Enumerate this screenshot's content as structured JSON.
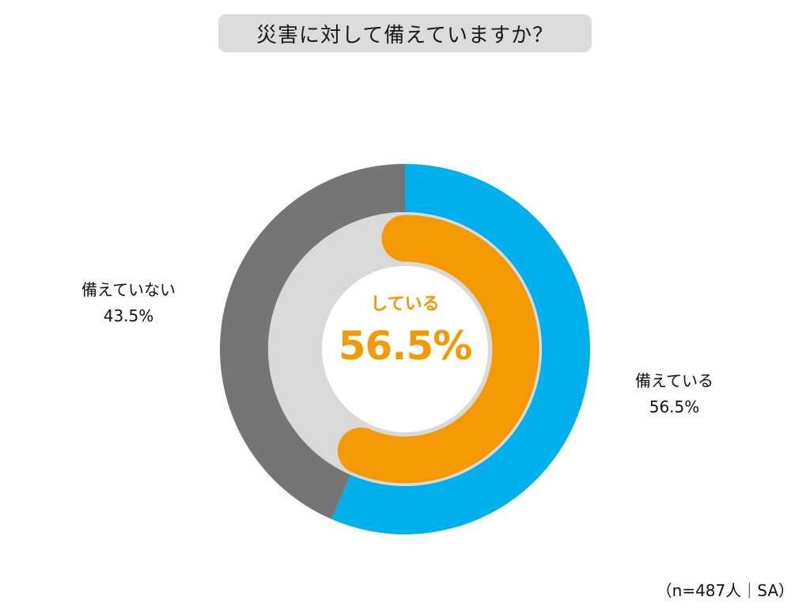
{
  "title": "災害に対して備えていますか？",
  "center": {
    "label": "している",
    "value": "56.5%"
  },
  "labels": {
    "no": {
      "name": "備えていない",
      "pct": "43.5%"
    },
    "yes": {
      "name": "備えている",
      "pct": "56.5%"
    }
  },
  "footnote": "（n=487人｜SA）",
  "colors": {
    "yes": "#00b0eb",
    "no": "#757575",
    "inner_track": "#d9d9d9",
    "inner_arc": "#f49a00"
  },
  "chart_data": {
    "type": "pie",
    "title": "災害に対して備えていますか？",
    "categories": [
      "備えている",
      "備えていない"
    ],
    "values": [
      56.5,
      43.5
    ],
    "unit": "%",
    "n": 487,
    "inner_ring": {
      "label": "している",
      "value": 56.5
    }
  }
}
